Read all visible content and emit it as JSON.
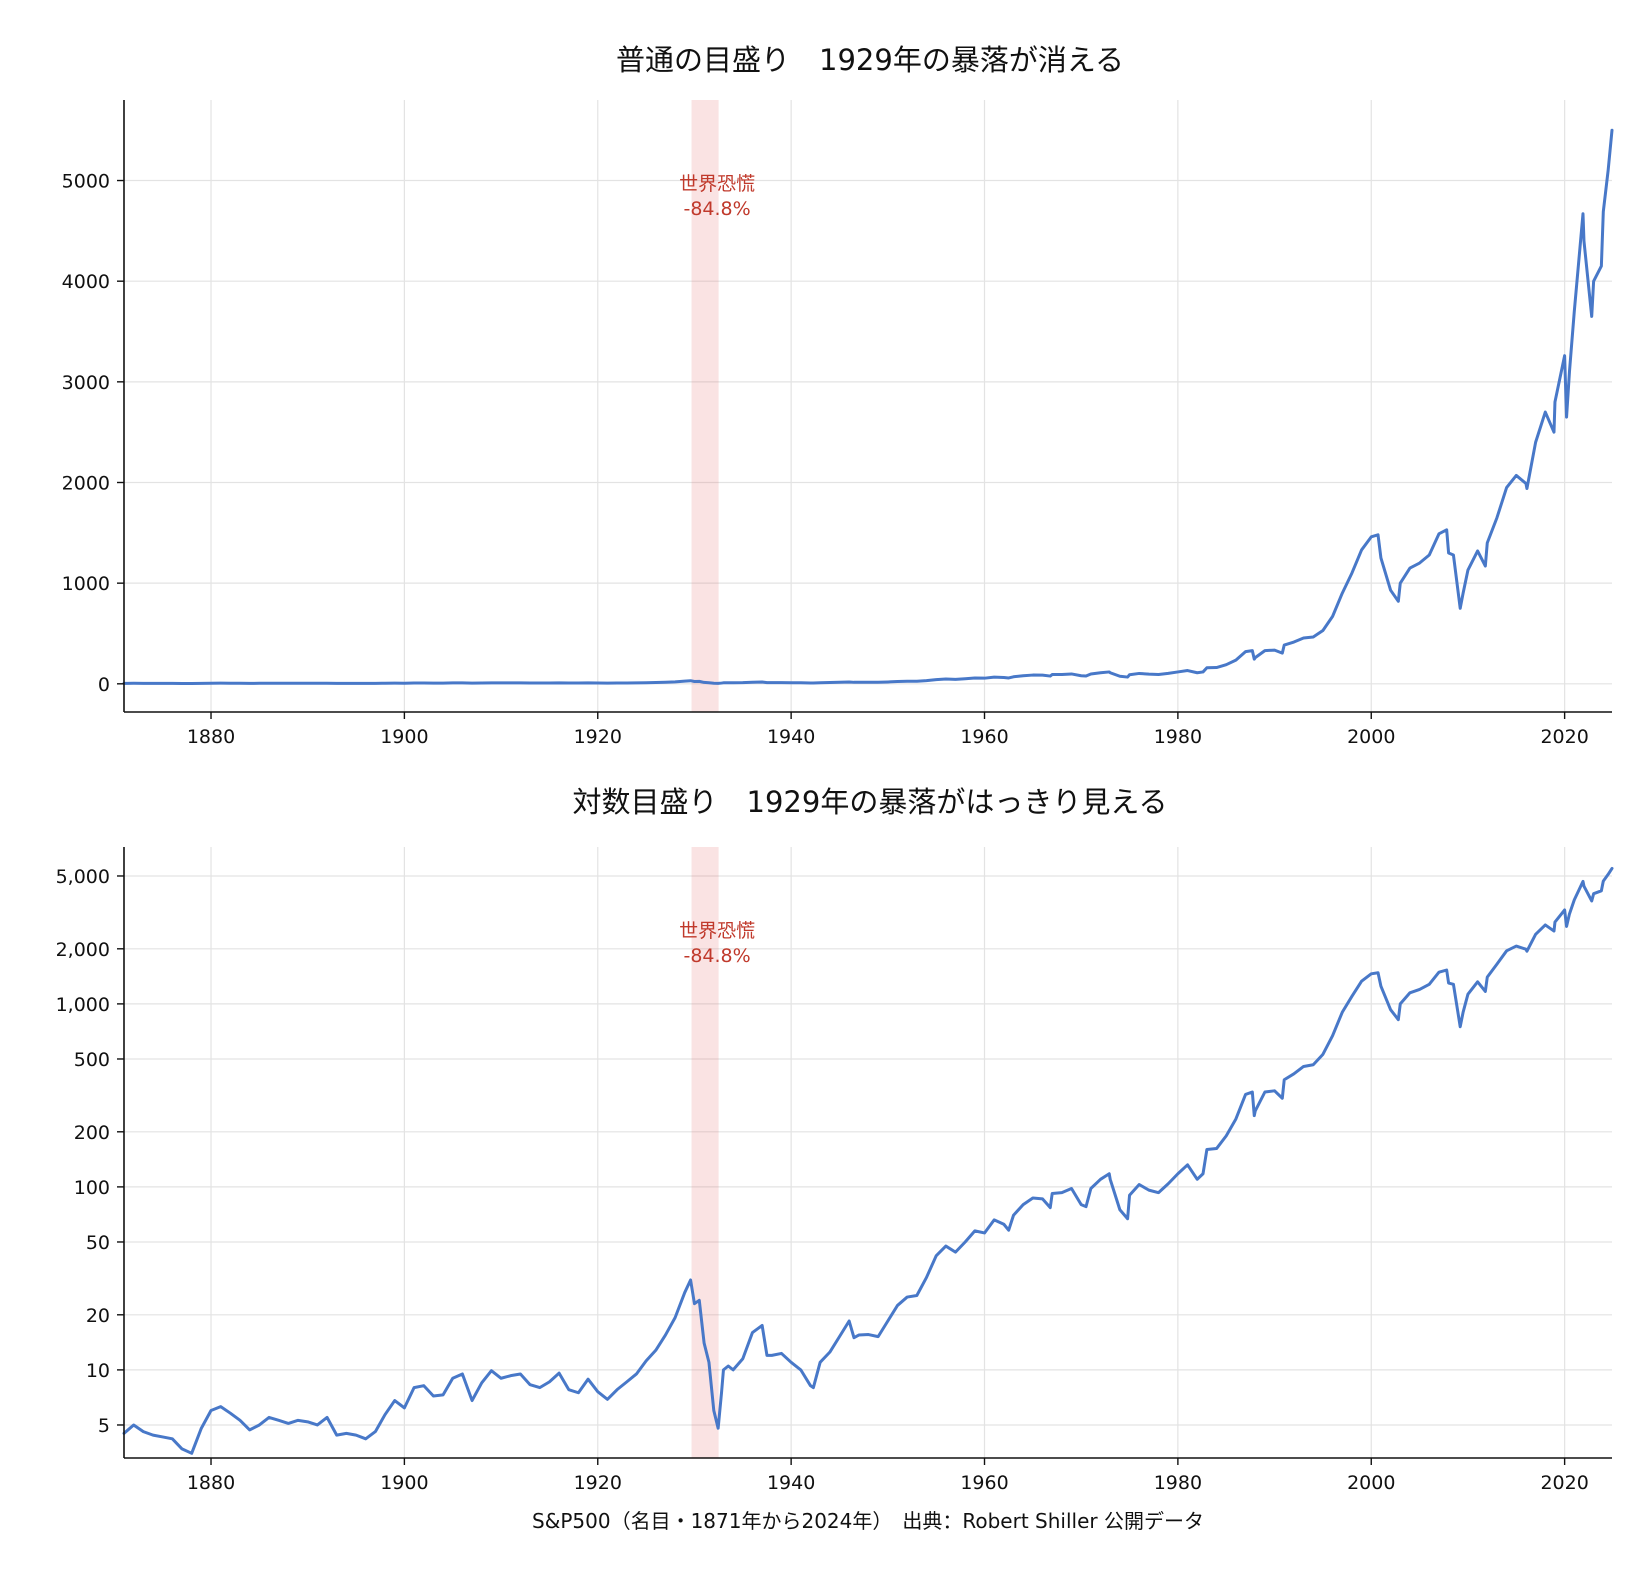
{
  "chart_data": [
    {
      "type": "line",
      "title": "普通の目盛り　1929年の暴落が消える",
      "yscale": "linear",
      "xlim": [
        1871,
        2024.9
      ],
      "ylim": [
        -280,
        5800
      ],
      "xticks": [
        1880,
        1900,
        1920,
        1940,
        1960,
        1980,
        2000,
        2020
      ],
      "yticks": [
        0,
        1000,
        2000,
        3000,
        4000,
        5000
      ],
      "ytick_labels": [
        "0",
        "1000",
        "2000",
        "3000",
        "4000",
        "5000"
      ],
      "grid": true,
      "band": {
        "x0": 1929.7,
        "x1": 1932.5
      },
      "annotation": {
        "line1": "世界恐慌",
        "line2": "-84.8%"
      },
      "series_ref": "S&P500"
    },
    {
      "type": "line",
      "title": "対数目盛り　1929年の暴落がはっきり見える",
      "yscale": "log",
      "xlim": [
        1871,
        2024.9
      ],
      "ylim": [
        3.3,
        7200
      ],
      "xticks": [
        1880,
        1900,
        1920,
        1940,
        1960,
        1980,
        2000,
        2020
      ],
      "yticks": [
        5,
        10,
        20,
        50,
        100,
        200,
        500,
        1000,
        2000,
        5000
      ],
      "ytick_labels": [
        "5",
        "10",
        "20",
        "50",
        "100",
        "200",
        "500",
        "1,000",
        "2,000",
        "5,000"
      ],
      "grid": true,
      "band": {
        "x0": 1929.7,
        "x1": 1932.5
      },
      "annotation": {
        "line1": "世界恐慌",
        "line2": "-84.8%"
      },
      "series_ref": "S&P500"
    }
  ],
  "series": {
    "color": "#4878c8",
    "x": [
      1871,
      1872,
      1873,
      1874,
      1875,
      1876,
      1877,
      1878,
      1879,
      1880,
      1881,
      1882,
      1883,
      1884,
      1885,
      1886,
      1887,
      1888,
      1889,
      1890,
      1891,
      1892,
      1893,
      1894,
      1895,
      1896,
      1897,
      1898,
      1899,
      1900,
      1901,
      1902,
      1903,
      1904,
      1905,
      1906,
      1907,
      1908,
      1909,
      1910,
      1911,
      1912,
      1913,
      1914,
      1915,
      1916,
      1917,
      1918,
      1919,
      1920,
      1921,
      1922,
      1923,
      1924,
      1925,
      1926,
      1927,
      1928,
      1929,
      1929.6,
      1930,
      1930.5,
      1931,
      1931.5,
      1932,
      1932.45,
      1932.8,
      1933,
      1933.5,
      1934,
      1935,
      1936,
      1937,
      1937.5,
      1938,
      1939,
      1940,
      1941,
      1942,
      1942.3,
      1943,
      1944,
      1945,
      1946,
      1946.5,
      1947,
      1948,
      1949,
      1950,
      1951,
      1952,
      1953,
      1954,
      1955,
      1956,
      1957,
      1958,
      1959,
      1960,
      1961,
      1962,
      1962.5,
      1963,
      1964,
      1965,
      1966,
      1966.8,
      1967,
      1968,
      1969,
      1970,
      1970.5,
      1971,
      1972,
      1972.9,
      1973,
      1974,
      1974.8,
      1975,
      1976,
      1977,
      1978,
      1979,
      1980,
      1981,
      1982,
      1982.6,
      1983,
      1984,
      1985,
      1986,
      1987,
      1987.7,
      1987.9,
      1988,
      1989,
      1990,
      1990.8,
      1991,
      1992,
      1993,
      1994,
      1995,
      1996,
      1997,
      1998,
      1999,
      2000,
      2000.7,
      2001,
      2002,
      2002.8,
      2003,
      2004,
      2005,
      2006,
      2007,
      2007.8,
      2008,
      2008.5,
      2009.2,
      2009.5,
      2010,
      2011,
      2011.8,
      2012,
      2013,
      2014,
      2015,
      2016,
      2016.1,
      2017,
      2018,
      2018.9,
      2019,
      2020,
      2020.2,
      2020.5,
      2021,
      2021.9,
      2022,
      2022.8,
      2023,
      2023.8,
      2024,
      2024.5,
      2024.9
    ],
    "values": [
      4.5,
      5.0,
      4.6,
      4.4,
      4.3,
      4.2,
      3.7,
      3.5,
      4.8,
      6.0,
      6.3,
      5.8,
      5.3,
      4.7,
      5.0,
      5.5,
      5.3,
      5.1,
      5.3,
      5.2,
      5.0,
      5.5,
      4.4,
      4.5,
      4.4,
      4.2,
      4.6,
      5.7,
      6.8,
      6.2,
      8.0,
      8.2,
      7.2,
      7.3,
      9.0,
      9.5,
      6.8,
      8.5,
      9.9,
      9.0,
      9.3,
      9.5,
      8.3,
      8.0,
      8.6,
      9.6,
      7.8,
      7.5,
      8.9,
      7.6,
      6.9,
      7.8,
      8.6,
      9.5,
      11.2,
      12.8,
      15.5,
      19.3,
      26.5,
      31.0,
      23.0,
      24.0,
      14.0,
      11.0,
      6.0,
      4.8,
      7.5,
      10.0,
      10.5,
      10.0,
      11.5,
      16.0,
      17.5,
      12.0,
      12.0,
      12.3,
      11.0,
      10.0,
      8.2,
      8.0,
      11.0,
      12.5,
      15.2,
      18.5,
      15.0,
      15.5,
      15.6,
      15.2,
      18.5,
      22.5,
      25.0,
      25.5,
      32.0,
      42.0,
      47.5,
      44.0,
      50.0,
      57.5,
      56.0,
      66.0,
      62.5,
      58.0,
      70.0,
      80.0,
      87.0,
      86.0,
      77.0,
      92.0,
      93.0,
      98.0,
      80.0,
      78.0,
      98.0,
      110.0,
      118.0,
      110.0,
      75.0,
      67.0,
      90.0,
      103.0,
      96.0,
      93.0,
      104.0,
      118.0,
      132.0,
      110.0,
      118.0,
      160.0,
      162.0,
      190.0,
      235.0,
      320.0,
      330.0,
      245.0,
      260.0,
      330.0,
      335.0,
      305.0,
      385.0,
      415.0,
      455.0,
      465.0,
      530.0,
      670.0,
      900.0,
      1100.0,
      1330.0,
      1460.0,
      1480.0,
      1250.0,
      930.0,
      820.0,
      1000.0,
      1150.0,
      1200.0,
      1280.0,
      1490.0,
      1530.0,
      1300.0,
      1280.0,
      750.0,
      900.0,
      1130.0,
      1320.0,
      1170.0,
      1400.0,
      1650.0,
      1950.0,
      2070.0,
      1990.0,
      1940.0,
      2400.0,
      2700.0,
      2500.0,
      2800.0,
      3260.0,
      2650.0,
      3100.0,
      3700.0,
      4670.0,
      4400.0,
      3650.0,
      4000.0,
      4150.0,
      4690.0,
      5100.0,
      5500.0
    ]
  },
  "footer": "S&P500（名目・1871年から2024年）　出典：Robert Shiller 公開データ"
}
